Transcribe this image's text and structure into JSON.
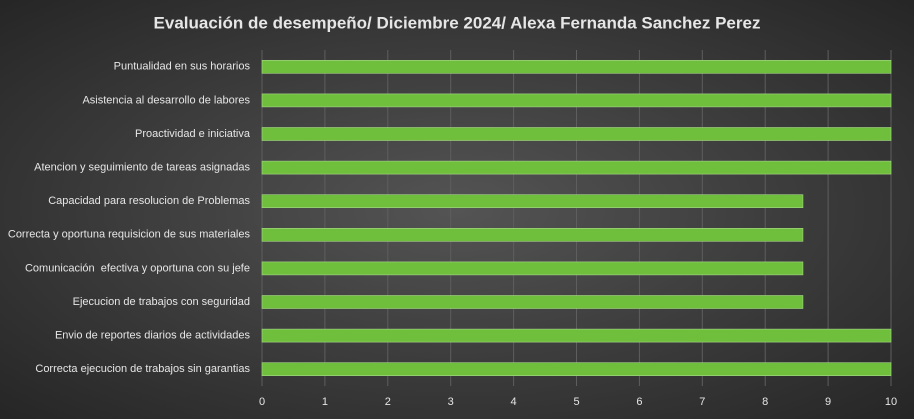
{
  "chart_data": {
    "type": "hbar",
    "title": "Evaluación de desempeño/ Diciembre 2024/ Alexa Fernanda Sanchez Perez",
    "categories": [
      "Puntualidad en sus horarios",
      "Asistencia al desarrollo de labores",
      "Proactividad e iniciativa",
      "Atencion y seguimiento de tareas asignadas",
      "Capacidad para resolucion de Problemas",
      "Correcta y oportuna requisicion de sus materiales",
      "Comunicación  efectiva y oportuna con su jefe",
      "Ejecucion de trabajos con seguridad",
      "Envio de reportes diarios de actividades",
      "Correcta ejecucion de trabajos sin garantias"
    ],
    "values": [
      10,
      10,
      10,
      10,
      8.6,
      8.6,
      8.6,
      8.6,
      10,
      10
    ],
    "color": "#6fbe3c",
    "xlim": [
      0,
      10
    ],
    "xticks": [
      0,
      1,
      2,
      3,
      4,
      5,
      6,
      7,
      8,
      9,
      10
    ],
    "grid": true
  }
}
